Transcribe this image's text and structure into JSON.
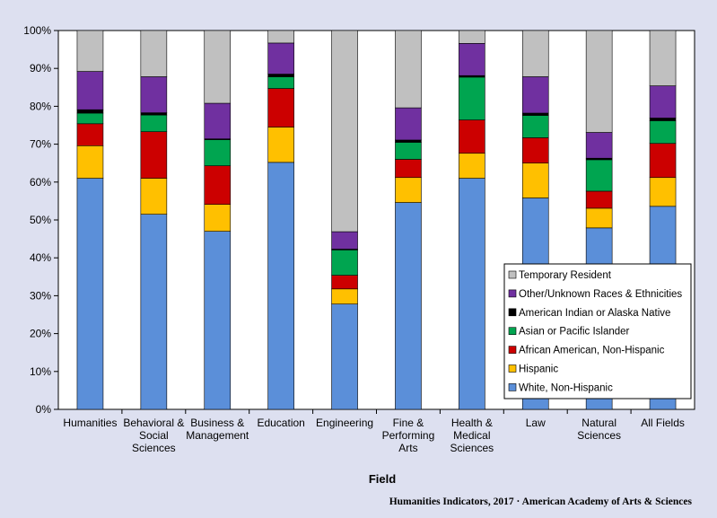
{
  "chart_data": {
    "type": "bar",
    "stacked": true,
    "title": "",
    "xlabel": "Field",
    "ylabel": "",
    "ylim": [
      0,
      100
    ],
    "y_ticks": [
      "0%",
      "10%",
      "20%",
      "30%",
      "40%",
      "50%",
      "60%",
      "70%",
      "80%",
      "90%",
      "100%"
    ],
    "categories": [
      [
        "Humanities"
      ],
      [
        "Behavioral &",
        "Social",
        "Sciences"
      ],
      [
        "Business &",
        "Management"
      ],
      [
        "Education"
      ],
      [
        "Engineering"
      ],
      [
        "Fine &",
        "Performing",
        "Arts"
      ],
      [
        "Health &",
        "Medical",
        "Sciences"
      ],
      [
        "Law"
      ],
      [
        "Natural",
        "Sciences"
      ],
      [
        "All Fields"
      ]
    ],
    "series": [
      {
        "name": "White, Non-Hispanic",
        "color": "#5b8fd9",
        "values": [
          61.0,
          51.5,
          47.0,
          65.2,
          27.8,
          54.6,
          61.0,
          55.8,
          47.9,
          53.6
        ]
      },
      {
        "name": "Hispanic",
        "color": "#ffc000",
        "values": [
          8.6,
          9.5,
          7.1,
          9.3,
          4.0,
          6.6,
          6.6,
          9.2,
          5.2,
          7.6
        ]
      },
      {
        "name": "African American, Non-Hispanic",
        "color": "#cc0000",
        "values": [
          5.8,
          12.3,
          10.2,
          10.2,
          3.6,
          4.8,
          8.8,
          6.7,
          4.5,
          9.0
        ]
      },
      {
        "name": "Asian or Pacific Islander",
        "color": "#00a550",
        "values": [
          2.8,
          4.4,
          6.9,
          3.1,
          6.7,
          4.5,
          11.3,
          5.9,
          8.3,
          6.0
        ]
      },
      {
        "name": "American Indian or Alaska Native",
        "color": "#000000",
        "values": [
          0.9,
          0.6,
          0.2,
          0.7,
          0.2,
          0.6,
          0.4,
          0.6,
          0.4,
          0.7
        ]
      },
      {
        "name": "Other/Unknown Races & Ethnicities",
        "color": "#7030a0",
        "values": [
          10.1,
          9.5,
          9.4,
          8.2,
          4.6,
          8.5,
          8.5,
          9.6,
          6.8,
          8.5
        ]
      },
      {
        "name": "Temporary Resident",
        "color": "#c0c0c0",
        "values": [
          10.8,
          12.2,
          19.2,
          3.3,
          53.1,
          20.4,
          3.4,
          12.2,
          26.9,
          14.6
        ]
      }
    ],
    "legend": {
      "position": "right",
      "order": [
        "Temporary Resident",
        "Other/Unknown Races & Ethnicities",
        "American Indian or Alaska Native",
        "Asian or Pacific Islander",
        "African American, Non-Hispanic",
        "Hispanic",
        "White, Non-Hispanic"
      ]
    },
    "grid": false
  },
  "footer": {
    "credit": "Humanities Indicators, 2017 · American Academy of Arts & Sciences"
  }
}
